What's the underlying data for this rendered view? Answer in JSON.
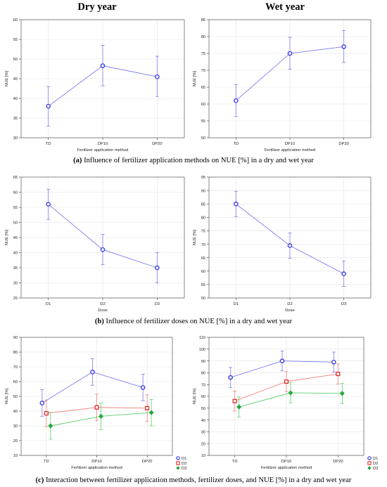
{
  "headers": {
    "dry": "Dry year",
    "wet": "Wet year"
  },
  "captions": {
    "a": {
      "tag": "(a)",
      "text": " Influence of fertilizer application methods on NUE [%] in a dry and wet year"
    },
    "b": {
      "tag": "(b)",
      "text": " Influence of fertilizer doses on NUE [%] in a dry and wet year"
    },
    "c": {
      "tag": "(c)",
      "text": " Interaction between fertilizer application methods, fertilizer doses, and NUE [%] in a dry and wet year"
    }
  },
  "colors": {
    "blue": "#3b3be6",
    "red": "#e02a2a",
    "green": "#20a83a",
    "line_blue": "#7a7af0",
    "line_red": "#f08080",
    "line_green": "#5ccf6e"
  },
  "chart_data": [
    {
      "id": "a_dry",
      "type": "line",
      "title": "",
      "xlabel": "Fertilizer application method",
      "ylabel": "NUE [%]",
      "categories": [
        "TD",
        "DP10",
        "DP20"
      ],
      "ylim": [
        30,
        60
      ],
      "yticks": [
        30,
        35,
        40,
        45,
        50,
        55,
        60
      ],
      "grid": true,
      "series": [
        {
          "color": "blue",
          "marker": "circle",
          "values": [
            38,
            48.3,
            45.5
          ],
          "err_low": [
            33,
            43.2,
            40.5
          ],
          "err_high": [
            43,
            53.5,
            50.7
          ]
        }
      ]
    },
    {
      "id": "a_wet",
      "type": "line",
      "title": "",
      "xlabel": "Fertilizer application method",
      "ylabel": "NUE [%]",
      "categories": [
        "TD",
        "DP10",
        "DP20"
      ],
      "ylim": [
        50,
        85
      ],
      "yticks": [
        50,
        55,
        60,
        65,
        70,
        75,
        80,
        85
      ],
      "grid": true,
      "series": [
        {
          "color": "blue",
          "marker": "circle",
          "values": [
            61,
            75,
            77
          ],
          "err_low": [
            56.3,
            70.3,
            72.3
          ],
          "err_high": [
            65.7,
            79.8,
            81.8
          ]
        }
      ]
    },
    {
      "id": "b_dry",
      "type": "line",
      "title": "",
      "xlabel": "Dose",
      "ylabel": "NUE [%]",
      "categories": [
        "D1",
        "D2",
        "D3"
      ],
      "ylim": [
        25,
        65
      ],
      "yticks": [
        25,
        30,
        35,
        40,
        45,
        50,
        55,
        60,
        65
      ],
      "grid": true,
      "series": [
        {
          "color": "blue",
          "marker": "circle",
          "values": [
            56,
            41,
            35
          ],
          "err_low": [
            51,
            36,
            30
          ],
          "err_high": [
            61,
            46,
            40
          ]
        }
      ]
    },
    {
      "id": "b_wet",
      "type": "line",
      "title": "",
      "xlabel": "Dose",
      "ylabel": "NUE [%]",
      "categories": [
        "D1",
        "D2",
        "D3"
      ],
      "ylim": [
        50,
        95
      ],
      "yticks": [
        50,
        55,
        60,
        65,
        70,
        75,
        80,
        85,
        90,
        95
      ],
      "grid": true,
      "series": [
        {
          "color": "blue",
          "marker": "circle",
          "values": [
            85,
            69.5,
            59
          ],
          "err_low": [
            80.3,
            64.8,
            54.3
          ],
          "err_high": [
            89.7,
            74.2,
            63.7
          ]
        }
      ]
    },
    {
      "id": "c_dry",
      "type": "line",
      "title": "",
      "xlabel": "Fertilizer application method",
      "ylabel": "NUE [%]",
      "categories": [
        "TD",
        "DP10",
        "DP20"
      ],
      "ylim": [
        10,
        90
      ],
      "yticks": [
        10,
        20,
        30,
        40,
        50,
        60,
        70,
        80,
        90
      ],
      "grid": true,
      "legend": "bottom-right",
      "series": [
        {
          "name": "D1",
          "color": "blue",
          "marker": "circle",
          "values": [
            45.5,
            66.5,
            56
          ],
          "err_low": [
            36.5,
            57.5,
            47
          ],
          "err_high": [
            54.5,
            75.5,
            65
          ]
        },
        {
          "name": "D2",
          "color": "red",
          "marker": "square",
          "values": [
            38.5,
            42.5,
            42
          ],
          "err_low": [
            29.5,
            33.5,
            33
          ],
          "err_high": [
            47.5,
            51.5,
            51
          ]
        },
        {
          "name": "D3",
          "color": "green",
          "marker": "diamond",
          "values": [
            30,
            36.5,
            39
          ],
          "err_low": [
            21,
            27.5,
            30
          ],
          "err_high": [
            39,
            45.5,
            48
          ]
        }
      ]
    },
    {
      "id": "c_wet",
      "type": "line",
      "title": "",
      "xlabel": "Fertilizer application method",
      "ylabel": "NUE [%]",
      "categories": [
        "TD",
        "DP10",
        "DP20"
      ],
      "ylim": [
        10,
        110
      ],
      "yticks": [
        10,
        20,
        30,
        40,
        50,
        60,
        70,
        80,
        90,
        100,
        110
      ],
      "grid": true,
      "legend": "bottom-right",
      "series": [
        {
          "name": "D1",
          "color": "blue",
          "marker": "circle",
          "values": [
            76,
            90,
            89
          ],
          "err_low": [
            67.5,
            81.5,
            80.5
          ],
          "err_high": [
            84.5,
            98.5,
            97.5
          ]
        },
        {
          "name": "D2",
          "color": "red",
          "marker": "square",
          "values": [
            56,
            72.5,
            79
          ],
          "err_low": [
            47.5,
            64,
            70.5
          ],
          "err_high": [
            64.5,
            81,
            87.5
          ]
        },
        {
          "name": "D3",
          "color": "green",
          "marker": "diamond",
          "values": [
            51,
            63,
            62.5
          ],
          "err_low": [
            42.5,
            54.5,
            54
          ],
          "err_high": [
            59.5,
            71.5,
            71
          ]
        }
      ]
    }
  ]
}
